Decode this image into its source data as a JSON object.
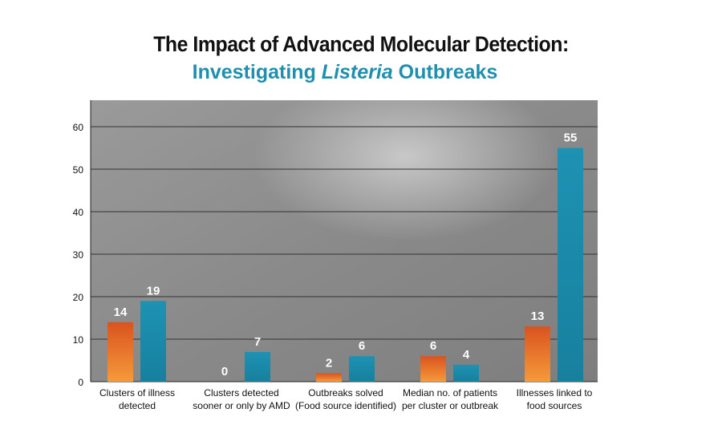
{
  "title": "The Impact of Advanced Molecular Detection:",
  "subtitle_prefix": "Investigating ",
  "subtitle_italic": "Listeria",
  "subtitle_suffix": " Outbreaks",
  "colors": {
    "series1": "#e8692a",
    "series2": "#1f8fae",
    "background_photo": "#8c8c8c"
  },
  "chart_data": {
    "type": "bar",
    "categories": [
      [
        "Clusters of illness",
        "detected"
      ],
      [
        "Clusters detected",
        "sooner or only by AMD"
      ],
      [
        "Outbreaks solved",
        "(Food source identified)"
      ],
      [
        "Median no. of patients",
        "per cluster or outbreak"
      ],
      [
        "Illnesses linked to",
        "food sources"
      ]
    ],
    "series": [
      {
        "values": [
          14,
          0,
          2,
          6,
          13
        ],
        "color": "#e8692a"
      },
      {
        "values": [
          19,
          7,
          6,
          4,
          55
        ],
        "color": "#1f8fae"
      }
    ],
    "yticks": [
      0,
      10,
      20,
      30,
      40,
      50,
      60
    ],
    "ylim": [
      0,
      66
    ],
    "grid": true,
    "legend": "none"
  }
}
